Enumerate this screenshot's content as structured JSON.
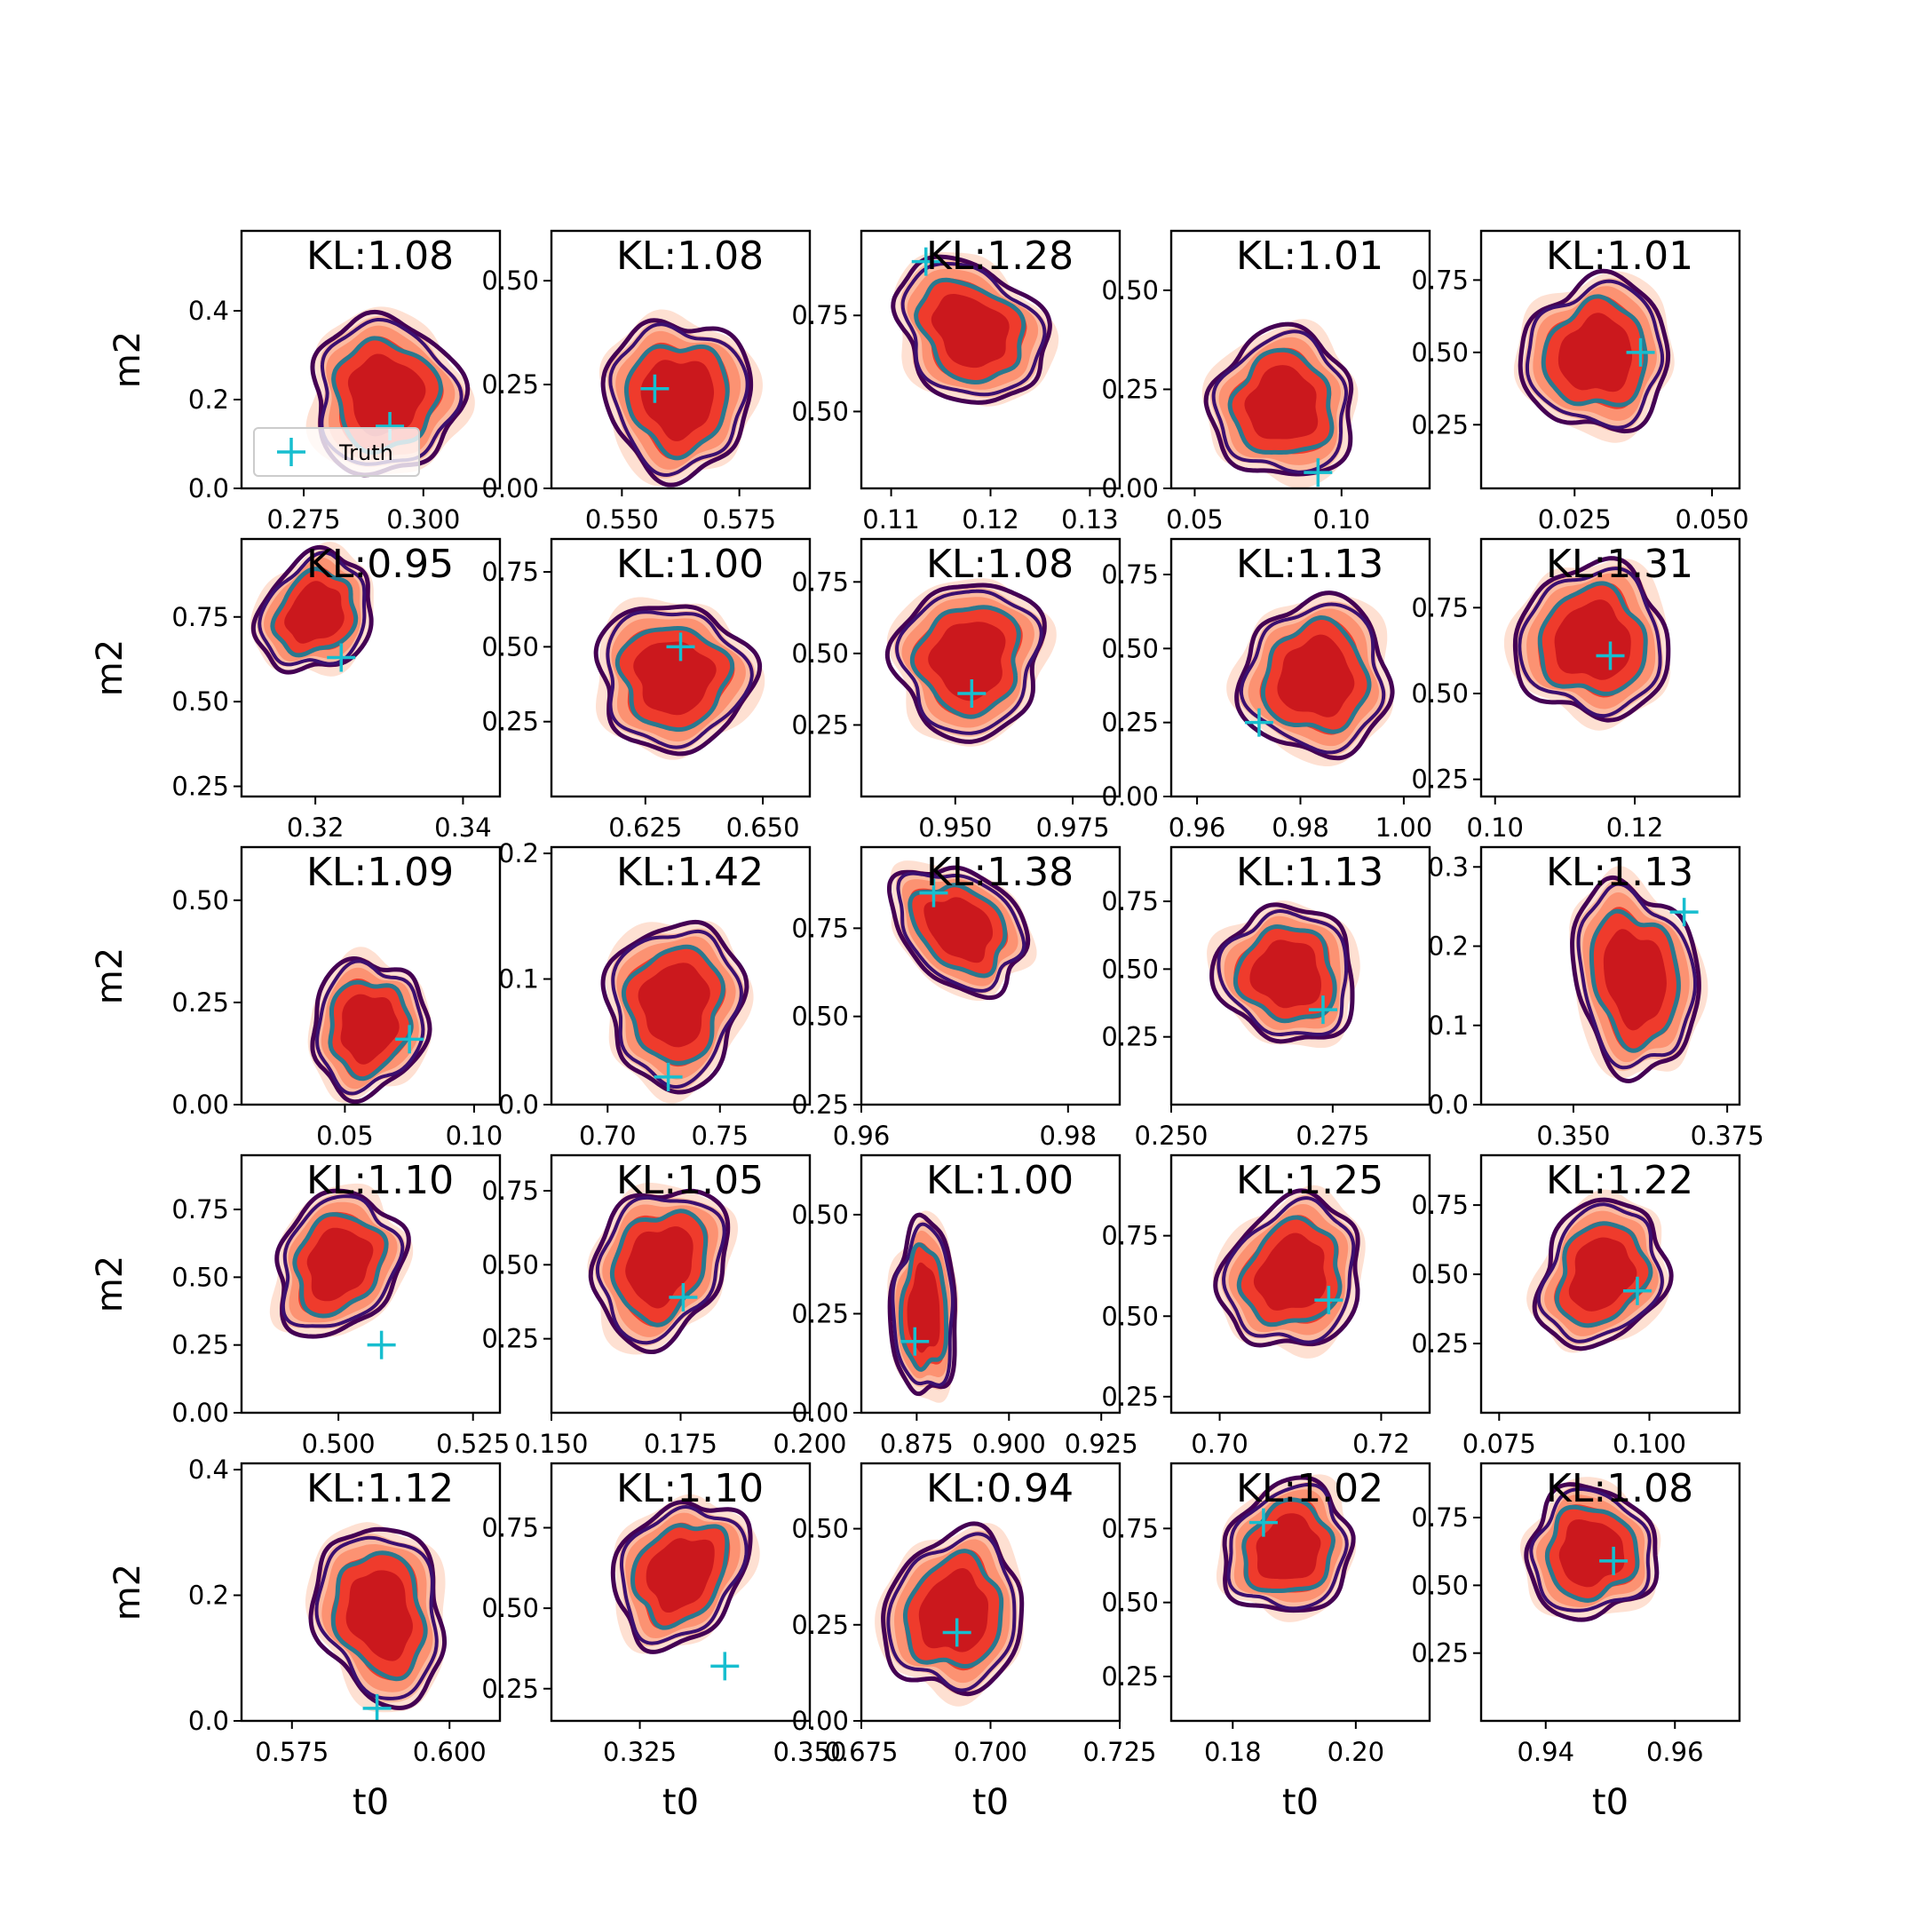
{
  "legend": {
    "label": "Truth",
    "marker_color": "#17becf"
  },
  "colors": {
    "fill_levels": [
      "#fee0d2",
      "#fcbba1",
      "#fc9272",
      "#ef3b2c",
      "#cb181d"
    ],
    "line_outer": "#440154",
    "line_mid": "#3b0f70",
    "line_inner": "#2a788e",
    "truth": "#17becf"
  },
  "chart_data": {
    "type": "contour-grid",
    "rows": 5,
    "cols": 5,
    "xlabel": "t0",
    "ylabel": "m2",
    "panels": [
      {
        "kl": "KL:1.08",
        "xlim": [
          0.262,
          0.316
        ],
        "ylim": [
          0.0,
          0.58
        ],
        "xticks": [
          0.275,
          0.3
        ],
        "xtick_labels": [
          "0.275",
          "0.300"
        ],
        "yticks": [
          0.0,
          0.2,
          0.4
        ],
        "ytick_labels": [
          "0.0",
          "0.2",
          "0.4"
        ],
        "truth": [
          0.293,
          0.14
        ],
        "center": [
          0.292,
          0.21
        ],
        "spread": [
          0.014,
          0.16
        ],
        "tilt": 0.1,
        "show_legend": true
      },
      {
        "kl": "KL:1.08",
        "xlim": [
          0.535,
          0.59
        ],
        "ylim": [
          0.0,
          0.62
        ],
        "xticks": [
          0.55,
          0.575
        ],
        "xtick_labels": [
          "0.550",
          "0.575"
        ],
        "yticks": [
          0.0,
          0.25,
          0.5
        ],
        "ytick_labels": [
          "0.00",
          "0.25",
          "0.50"
        ],
        "truth": [
          0.557,
          0.24
        ],
        "center": [
          0.562,
          0.22
        ],
        "spread": [
          0.014,
          0.17
        ],
        "tilt": 0.1
      },
      {
        "kl": "KL:1.28",
        "xlim": [
          0.107,
          0.133
        ],
        "ylim": [
          0.3,
          0.97
        ],
        "xticks": [
          0.11,
          0.12,
          0.13
        ],
        "xtick_labels": [
          "0.11",
          "0.12",
          "0.13"
        ],
        "yticks": [
          0.5,
          0.75
        ],
        "ytick_labels": [
          "0.50",
          "0.75"
        ],
        "truth": [
          0.1135,
          0.89
        ],
        "center": [
          0.118,
          0.71
        ],
        "spread": [
          0.0075,
          0.15
        ],
        "tilt": -0.85
      },
      {
        "kl": "KL:1.01",
        "xlim": [
          0.042,
          0.13
        ],
        "ylim": [
          0.0,
          0.65
        ],
        "xticks": [
          0.05,
          0.1
        ],
        "xtick_labels": [
          "0.05",
          "0.10"
        ],
        "yticks": [
          0.0,
          0.25,
          0.5
        ],
        "ytick_labels": [
          "0.00",
          "0.25",
          "0.50"
        ],
        "truth": [
          0.092,
          0.04
        ],
        "center": [
          0.08,
          0.21
        ],
        "spread": [
          0.022,
          0.17
        ],
        "tilt": 0.1
      },
      {
        "kl": "KL:1.01",
        "xlim": [
          0.008,
          0.055
        ],
        "ylim": [
          0.03,
          0.92
        ],
        "xticks": [
          0.025,
          0.05
        ],
        "xtick_labels": [
          "0.025",
          "0.050"
        ],
        "yticks": [
          0.25,
          0.5,
          0.75
        ],
        "ytick_labels": [
          "0.25",
          "0.50",
          "0.75"
        ],
        "truth": [
          0.037,
          0.5
        ],
        "center": [
          0.029,
          0.49
        ],
        "spread": [
          0.012,
          0.24
        ],
        "tilt": -0.6
      },
      {
        "kl": "KL:0.95",
        "xlim": [
          0.31,
          0.345
        ],
        "ylim": [
          0.22,
          0.98
        ],
        "xticks": [
          0.32,
          0.34
        ],
        "xtick_labels": [
          "0.32",
          "0.34"
        ],
        "yticks": [
          0.25,
          0.5,
          0.75
        ],
        "ytick_labels": [
          "0.25",
          "0.50",
          "0.75"
        ],
        "truth": [
          0.3235,
          0.63
        ],
        "center": [
          0.32,
          0.76
        ],
        "spread": [
          0.0065,
          0.17
        ],
        "tilt": -0.85
      },
      {
        "kl": "KL:1.00",
        "xlim": [
          0.605,
          0.66
        ],
        "ylim": [
          0.0,
          0.86
        ],
        "xticks": [
          0.625,
          0.65
        ],
        "xtick_labels": [
          "0.625",
          "0.650"
        ],
        "yticks": [
          0.25,
          0.5,
          0.75
        ],
        "ytick_labels": [
          "0.25",
          "0.50",
          "0.75"
        ],
        "truth": [
          0.6325,
          0.5
        ],
        "center": [
          0.631,
          0.4
        ],
        "spread": [
          0.015,
          0.22
        ],
        "tilt": -0.35
      },
      {
        "kl": "KL:1.08",
        "xlim": [
          0.93,
          0.985
        ],
        "ylim": [
          0.0,
          0.9
        ],
        "xticks": [
          0.95,
          0.975
        ],
        "xtick_labels": [
          "0.950",
          "0.975"
        ],
        "yticks": [
          0.25,
          0.5,
          0.75
        ],
        "ytick_labels": [
          "0.25",
          "0.50",
          "0.75"
        ],
        "truth": [
          0.9535,
          0.36
        ],
        "center": [
          0.953,
          0.48
        ],
        "spread": [
          0.014,
          0.25
        ],
        "tilt": -0.35
      },
      {
        "kl": "KL:1.13",
        "xlim": [
          0.955,
          1.005
        ],
        "ylim": [
          0.0,
          0.87
        ],
        "xticks": [
          0.96,
          0.98,
          1.0
        ],
        "xtick_labels": [
          "0.96",
          "0.98",
          "1.00"
        ],
        "yticks": [
          0.0,
          0.25,
          0.5,
          0.75
        ],
        "ytick_labels": [
          "0.00",
          "0.25",
          "0.50",
          "0.75"
        ],
        "truth": [
          0.972,
          0.25
        ],
        "center": [
          0.983,
          0.4
        ],
        "spread": [
          0.013,
          0.24
        ],
        "tilt": -0.2
      },
      {
        "kl": "KL:1.31",
        "xlim": [
          0.098,
          0.135
        ],
        "ylim": [
          0.2,
          0.95
        ],
        "xticks": [
          0.1,
          0.12
        ],
        "xtick_labels": [
          "0.10",
          "0.12"
        ],
        "yticks": [
          0.25,
          0.5,
          0.75
        ],
        "ytick_labels": [
          "0.25",
          "0.50",
          "0.75"
        ],
        "truth": [
          0.1165,
          0.61
        ],
        "center": [
          0.114,
          0.65
        ],
        "spread": [
          0.01,
          0.2
        ],
        "tilt": -0.7
      },
      {
        "kl": "KL:1.09",
        "xlim": [
          0.01,
          0.11
        ],
        "ylim": [
          0.0,
          0.63
        ],
        "xticks": [
          0.05,
          0.1
        ],
        "xtick_labels": [
          "0.05",
          "0.10"
        ],
        "yticks": [
          0.0,
          0.25,
          0.5
        ],
        "ytick_labels": [
          "0.00",
          "0.25",
          "0.50"
        ],
        "truth": [
          0.075,
          0.16
        ],
        "center": [
          0.059,
          0.19
        ],
        "spread": [
          0.02,
          0.15
        ],
        "tilt": -0.2
      },
      {
        "kl": "KL:1.42",
        "xlim": [
          0.675,
          0.79
        ],
        "ylim": [
          0.0,
          0.205
        ],
        "xticks": [
          0.7,
          0.75
        ],
        "xtick_labels": [
          "0.70",
          "0.75"
        ],
        "yticks": [
          0.0,
          0.1,
          0.2
        ],
        "ytick_labels": [
          "0.0",
          "0.1",
          "0.2"
        ],
        "truth": [
          0.727,
          0.022
        ],
        "center": [
          0.73,
          0.08
        ],
        "spread": [
          0.027,
          0.06
        ],
        "tilt": -0.1
      },
      {
        "kl": "KL:1.38",
        "xlim": [
          0.96,
          0.985
        ],
        "ylim": [
          0.25,
          0.98
        ],
        "xticks": [
          0.96,
          0.98
        ],
        "xtick_labels": [
          "0.96",
          "0.98"
        ],
        "yticks": [
          0.25,
          0.5,
          0.75
        ],
        "ytick_labels": [
          "0.25",
          "0.50",
          "0.75"
        ],
        "truth": [
          0.967,
          0.85
        ],
        "center": [
          0.9695,
          0.75
        ],
        "spread": [
          0.0065,
          0.14
        ],
        "tilt": -0.8
      },
      {
        "kl": "KL:1.13",
        "xlim": [
          0.25,
          0.29
        ],
        "ylim": [
          0.0,
          0.95
        ],
        "xticks": [
          0.25,
          0.275
        ],
        "xtick_labels": [
          "0.250",
          "0.275"
        ],
        "yticks": [
          0.25,
          0.5,
          0.75
        ],
        "ytick_labels": [
          "0.25",
          "0.50",
          "0.75"
        ],
        "truth": [
          0.2735,
          0.35
        ],
        "center": [
          0.268,
          0.48
        ],
        "spread": [
          0.01,
          0.22
        ],
        "tilt": -0.6
      },
      {
        "kl": "KL:1.13",
        "xlim": [
          0.335,
          0.377
        ],
        "ylim": [
          0.0,
          0.325
        ],
        "xticks": [
          0.35,
          0.375
        ],
        "xtick_labels": [
          "0.350",
          "0.375"
        ],
        "yticks": [
          0.0,
          0.1,
          0.2,
          0.3
        ],
        "ytick_labels": [
          "0.0",
          "0.1",
          "0.2",
          "0.3"
        ],
        "truth": [
          0.368,
          0.243
        ],
        "center": [
          0.36,
          0.16
        ],
        "spread": [
          0.009,
          0.11
        ],
        "tilt": 0.2
      },
      {
        "kl": "KL:1.10",
        "xlim": [
          0.482,
          0.53
        ],
        "ylim": [
          0.0,
          0.95
        ],
        "xticks": [
          0.5,
          0.525
        ],
        "xtick_labels": [
          "0.500",
          "0.525"
        ],
        "yticks": [
          0.0,
          0.25,
          0.5,
          0.75
        ],
        "ytick_labels": [
          "0.00",
          "0.25",
          "0.50",
          "0.75"
        ],
        "truth": [
          0.508,
          0.25
        ],
        "center": [
          0.5,
          0.55
        ],
        "spread": [
          0.01,
          0.25
        ],
        "tilt": -0.55
      },
      {
        "kl": "KL:1.05",
        "xlim": [
          0.15,
          0.2
        ],
        "ylim": [
          0.0,
          0.87
        ],
        "xticks": [
          0.15,
          0.175,
          0.2
        ],
        "xtick_labels": [
          "0.150",
          "0.175",
          "0.200"
        ],
        "yticks": [
          0.25,
          0.5,
          0.75
        ],
        "ytick_labels": [
          "0.25",
          "0.50",
          "0.75"
        ],
        "truth": [
          0.1755,
          0.39
        ],
        "center": [
          0.171,
          0.5
        ],
        "spread": [
          0.011,
          0.25
        ],
        "tilt": -0.5
      },
      {
        "kl": "KL:1.00",
        "xlim": [
          0.86,
          0.93
        ],
        "ylim": [
          0.0,
          0.65
        ],
        "xticks": [
          0.875,
          0.9,
          0.925
        ],
        "xtick_labels": [
          "0.875",
          "0.900",
          "0.925"
        ],
        "yticks": [
          0.0,
          0.25,
          0.5
        ],
        "ytick_labels": [
          "0.00",
          "0.25",
          "0.50"
        ],
        "truth": [
          0.8745,
          0.18
        ],
        "center": [
          0.877,
          0.26
        ],
        "spread": [
          0.008,
          0.2
        ],
        "tilt": 0.0
      },
      {
        "kl": "KL:1.25",
        "xlim": [
          0.694,
          0.726
        ],
        "ylim": [
          0.2,
          1.0
        ],
        "xticks": [
          0.7,
          0.72
        ],
        "xtick_labels": [
          "0.70",
          "0.72"
        ],
        "yticks": [
          0.25,
          0.5,
          0.75
        ],
        "ytick_labels": [
          "0.25",
          "0.50",
          "0.75"
        ],
        "truth": [
          0.7135,
          0.55
        ],
        "center": [
          0.709,
          0.63
        ],
        "spread": [
          0.0075,
          0.22
        ],
        "tilt": -0.6
      },
      {
        "kl": "KL:1.22",
        "xlim": [
          0.072,
          0.115
        ],
        "ylim": [
          0.0,
          0.93
        ],
        "xticks": [
          0.075,
          0.1
        ],
        "xtick_labels": [
          "0.075",
          "0.100"
        ],
        "yticks": [
          0.25,
          0.5,
          0.75
        ],
        "ytick_labels": [
          "0.25",
          "0.50",
          "0.75"
        ],
        "truth": [
          0.098,
          0.44
        ],
        "center": [
          0.092,
          0.5
        ],
        "spread": [
          0.009,
          0.25
        ],
        "tilt": -0.5
      },
      {
        "kl": "KL:1.12",
        "xlim": [
          0.567,
          0.608
        ],
        "ylim": [
          0.0,
          0.41
        ],
        "xticks": [
          0.575,
          0.6
        ],
        "xtick_labels": [
          "0.575",
          "0.600"
        ],
        "yticks": [
          0.0,
          0.2,
          0.4
        ],
        "ytick_labels": [
          "0.0",
          "0.2",
          "0.4"
        ],
        "truth": [
          0.5885,
          0.02
        ],
        "center": [
          0.589,
          0.17
        ],
        "spread": [
          0.009,
          0.13
        ],
        "tilt": 0.25
      },
      {
        "kl": "KL:1.10",
        "xlim": [
          0.312,
          0.35
        ],
        "ylim": [
          0.15,
          0.95
        ],
        "xticks": [
          0.325,
          0.35
        ],
        "xtick_labels": [
          "0.325",
          "0.350"
        ],
        "yticks": [
          0.25,
          0.5,
          0.75
        ],
        "ytick_labels": [
          "0.25",
          "0.50",
          "0.75"
        ],
        "truth": [
          0.3375,
          0.32
        ],
        "center": [
          0.331,
          0.61
        ],
        "spread": [
          0.008,
          0.22
        ],
        "tilt": -0.75
      },
      {
        "kl": "KL:0.94",
        "xlim": [
          0.675,
          0.725
        ],
        "ylim": [
          0.0,
          0.67
        ],
        "xticks": [
          0.675,
          0.7,
          0.725
        ],
        "xtick_labels": [
          "0.675",
          "0.700",
          "0.725"
        ],
        "yticks": [
          0.0,
          0.25,
          0.5
        ],
        "ytick_labels": [
          "0.00",
          "0.25",
          "0.50"
        ],
        "truth": [
          0.6935,
          0.23
        ],
        "center": [
          0.693,
          0.28
        ],
        "spread": [
          0.012,
          0.19
        ],
        "tilt": -0.3
      },
      {
        "kl": "KL:1.02",
        "xlim": [
          0.17,
          0.212
        ],
        "ylim": [
          0.1,
          0.97
        ],
        "xticks": [
          0.18,
          0.2
        ],
        "xtick_labels": [
          "0.18",
          "0.20"
        ],
        "yticks": [
          0.25,
          0.5,
          0.75
        ],
        "ytick_labels": [
          "0.25",
          "0.50",
          "0.75"
        ],
        "truth": [
          0.185,
          0.77
        ],
        "center": [
          0.189,
          0.68
        ],
        "spread": [
          0.009,
          0.21
        ],
        "tilt": -0.75
      },
      {
        "kl": "KL:1.08",
        "xlim": [
          0.93,
          0.97
        ],
        "ylim": [
          0.0,
          0.95
        ],
        "xticks": [
          0.94,
          0.96
        ],
        "xtick_labels": [
          "0.94",
          "0.96"
        ],
        "yticks": [
          0.25,
          0.5,
          0.75
        ],
        "ytick_labels": [
          "0.25",
          "0.50",
          "0.75"
        ],
        "truth": [
          0.9505,
          0.59
        ],
        "center": [
          0.947,
          0.62
        ],
        "spread": [
          0.009,
          0.22
        ],
        "tilt": -0.65
      }
    ]
  }
}
